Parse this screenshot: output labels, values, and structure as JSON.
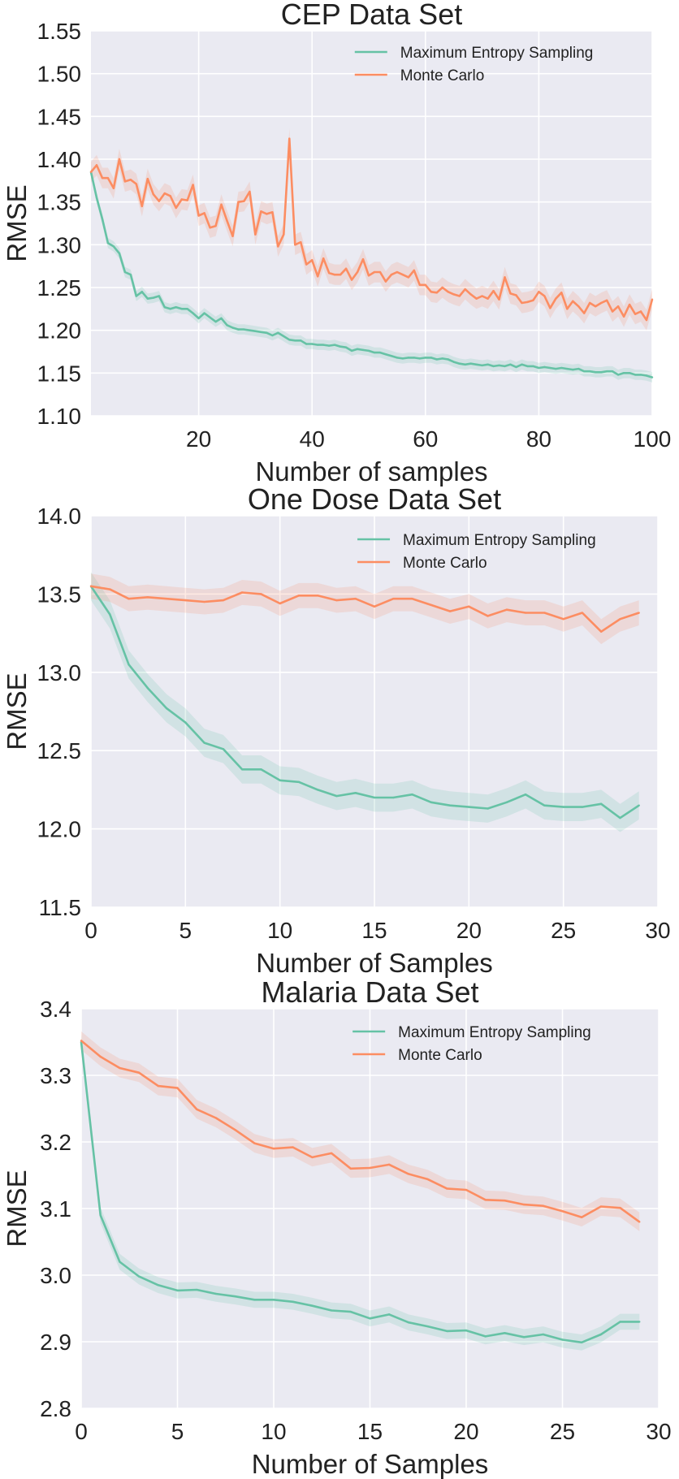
{
  "chart_data": [
    {
      "type": "line",
      "title": "CEP Data Set",
      "xlabel": "Number of samples",
      "ylabel": "RMSE",
      "xlim": [
        1,
        100
      ],
      "ylim": [
        1.1,
        1.55
      ],
      "xticks": [
        20,
        40,
        60,
        80,
        100
      ],
      "yticks": [
        1.1,
        1.15,
        1.2,
        1.25,
        1.3,
        1.35,
        1.4,
        1.45,
        1.5,
        1.55
      ],
      "ytick_format": 2,
      "grid": true,
      "legend_position": "top-right",
      "x_start": 1,
      "series": [
        {
          "name": "Maximum Entropy Sampling",
          "color": "#66c2a5",
          "band": 0.006,
          "values": [
            1.385,
            1.355,
            1.33,
            1.302,
            1.298,
            1.29,
            1.268,
            1.265,
            1.24,
            1.245,
            1.237,
            1.238,
            1.24,
            1.227,
            1.225,
            1.227,
            1.225,
            1.225,
            1.22,
            1.214,
            1.22,
            1.215,
            1.21,
            1.214,
            1.206,
            1.203,
            1.201,
            1.201,
            1.2,
            1.199,
            1.198,
            1.197,
            1.194,
            1.197,
            1.193,
            1.189,
            1.188,
            1.188,
            1.184,
            1.184,
            1.183,
            1.183,
            1.182,
            1.183,
            1.181,
            1.18,
            1.176,
            1.178,
            1.177,
            1.176,
            1.174,
            1.174,
            1.172,
            1.17,
            1.168,
            1.167,
            1.168,
            1.168,
            1.167,
            1.168,
            1.168,
            1.166,
            1.167,
            1.166,
            1.163,
            1.161,
            1.16,
            1.161,
            1.16,
            1.159,
            1.16,
            1.158,
            1.159,
            1.158,
            1.16,
            1.157,
            1.16,
            1.158,
            1.158,
            1.156,
            1.157,
            1.156,
            1.155,
            1.156,
            1.155,
            1.154,
            1.155,
            1.152,
            1.152,
            1.151,
            1.151,
            1.152,
            1.152,
            1.148,
            1.15,
            1.15,
            1.148,
            1.148,
            1.147,
            1.145
          ]
        },
        {
          "name": "Monte Carlo",
          "color": "#fc8d62",
          "band": 0.012,
          "values": [
            1.385,
            1.393,
            1.378,
            1.378,
            1.366,
            1.4,
            1.374,
            1.376,
            1.371,
            1.345,
            1.377,
            1.359,
            1.351,
            1.36,
            1.357,
            1.343,
            1.353,
            1.352,
            1.37,
            1.334,
            1.337,
            1.32,
            1.322,
            1.347,
            1.328,
            1.31,
            1.35,
            1.351,
            1.362,
            1.312,
            1.339,
            1.336,
            1.338,
            1.298,
            1.312,
            1.424,
            1.3,
            1.303,
            1.277,
            1.282,
            1.263,
            1.284,
            1.267,
            1.265,
            1.265,
            1.272,
            1.259,
            1.268,
            1.283,
            1.264,
            1.268,
            1.268,
            1.257,
            1.265,
            1.268,
            1.265,
            1.262,
            1.27,
            1.253,
            1.253,
            1.245,
            1.244,
            1.25,
            1.245,
            1.242,
            1.24,
            1.248,
            1.242,
            1.237,
            1.24,
            1.237,
            1.246,
            1.236,
            1.262,
            1.243,
            1.241,
            1.232,
            1.233,
            1.235,
            1.245,
            1.24,
            1.226,
            1.237,
            1.244,
            1.225,
            1.234,
            1.228,
            1.22,
            1.232,
            1.228,
            1.232,
            1.235,
            1.222,
            1.228,
            1.216,
            1.23,
            1.219,
            1.222,
            1.212,
            1.236
          ]
        }
      ]
    },
    {
      "type": "line",
      "title": "One Dose Data Set",
      "xlabel": "Number of Samples",
      "ylabel": "RMSE",
      "xlim": [
        0,
        30
      ],
      "ylim": [
        11.5,
        14.0
      ],
      "xticks": [
        0,
        5,
        10,
        15,
        20,
        25,
        30
      ],
      "yticks": [
        11.5,
        12.0,
        12.5,
        13.0,
        13.5,
        14.0
      ],
      "ytick_format": 1,
      "grid": true,
      "legend_position": "top-right",
      "x_start": 0,
      "series": [
        {
          "name": "Maximum Entropy Sampling",
          "color": "#66c2a5",
          "band": 0.09,
          "values": [
            13.55,
            13.37,
            13.05,
            12.9,
            12.77,
            12.68,
            12.55,
            12.51,
            12.38,
            12.38,
            12.31,
            12.3,
            12.25,
            12.21,
            12.23,
            12.2,
            12.2,
            12.22,
            12.17,
            12.15,
            12.14,
            12.13,
            12.17,
            12.22,
            12.15,
            12.14,
            12.14,
            12.16,
            12.07,
            12.15
          ]
        },
        {
          "name": "Monte Carlo",
          "color": "#fc8d62",
          "band": 0.08,
          "values": [
            13.55,
            13.53,
            13.47,
            13.48,
            13.47,
            13.46,
            13.45,
            13.46,
            13.51,
            13.5,
            13.44,
            13.49,
            13.49,
            13.46,
            13.47,
            13.42,
            13.47,
            13.47,
            13.43,
            13.39,
            13.42,
            13.36,
            13.4,
            13.38,
            13.38,
            13.34,
            13.38,
            13.26,
            13.34,
            13.38
          ]
        }
      ]
    },
    {
      "type": "line",
      "title": "Malaria Data Set",
      "xlabel": "Number of Samples",
      "ylabel": "RMSE",
      "xlim": [
        0,
        30
      ],
      "ylim": [
        2.8,
        3.4
      ],
      "xticks": [
        0,
        5,
        10,
        15,
        20,
        25,
        30
      ],
      "yticks": [
        2.8,
        2.9,
        3.0,
        3.1,
        3.2,
        3.3,
        3.4
      ],
      "ytick_format": 1,
      "grid": true,
      "legend_position": "top-right",
      "x_start": 0,
      "series": [
        {
          "name": "Maximum Entropy Sampling",
          "color": "#66c2a5",
          "band": 0.012,
          "values": [
            3.35,
            3.09,
            3.02,
            2.998,
            2.985,
            2.977,
            2.978,
            2.972,
            2.968,
            2.963,
            2.963,
            2.96,
            2.954,
            2.947,
            2.945,
            2.935,
            2.941,
            2.929,
            2.923,
            2.916,
            2.917,
            2.908,
            2.913,
            2.907,
            2.911,
            2.903,
            2.899,
            2.911,
            2.93,
            2.93
          ]
        },
        {
          "name": "Monte Carlo",
          "color": "#fc8d62",
          "band": 0.014,
          "values": [
            3.352,
            3.328,
            3.311,
            3.304,
            3.284,
            3.281,
            3.249,
            3.236,
            3.218,
            3.198,
            3.19,
            3.192,
            3.177,
            3.183,
            3.16,
            3.161,
            3.166,
            3.152,
            3.144,
            3.13,
            3.128,
            3.113,
            3.112,
            3.106,
            3.104,
            3.096,
            3.087,
            3.103,
            3.101,
            3.08
          ]
        }
      ]
    }
  ]
}
